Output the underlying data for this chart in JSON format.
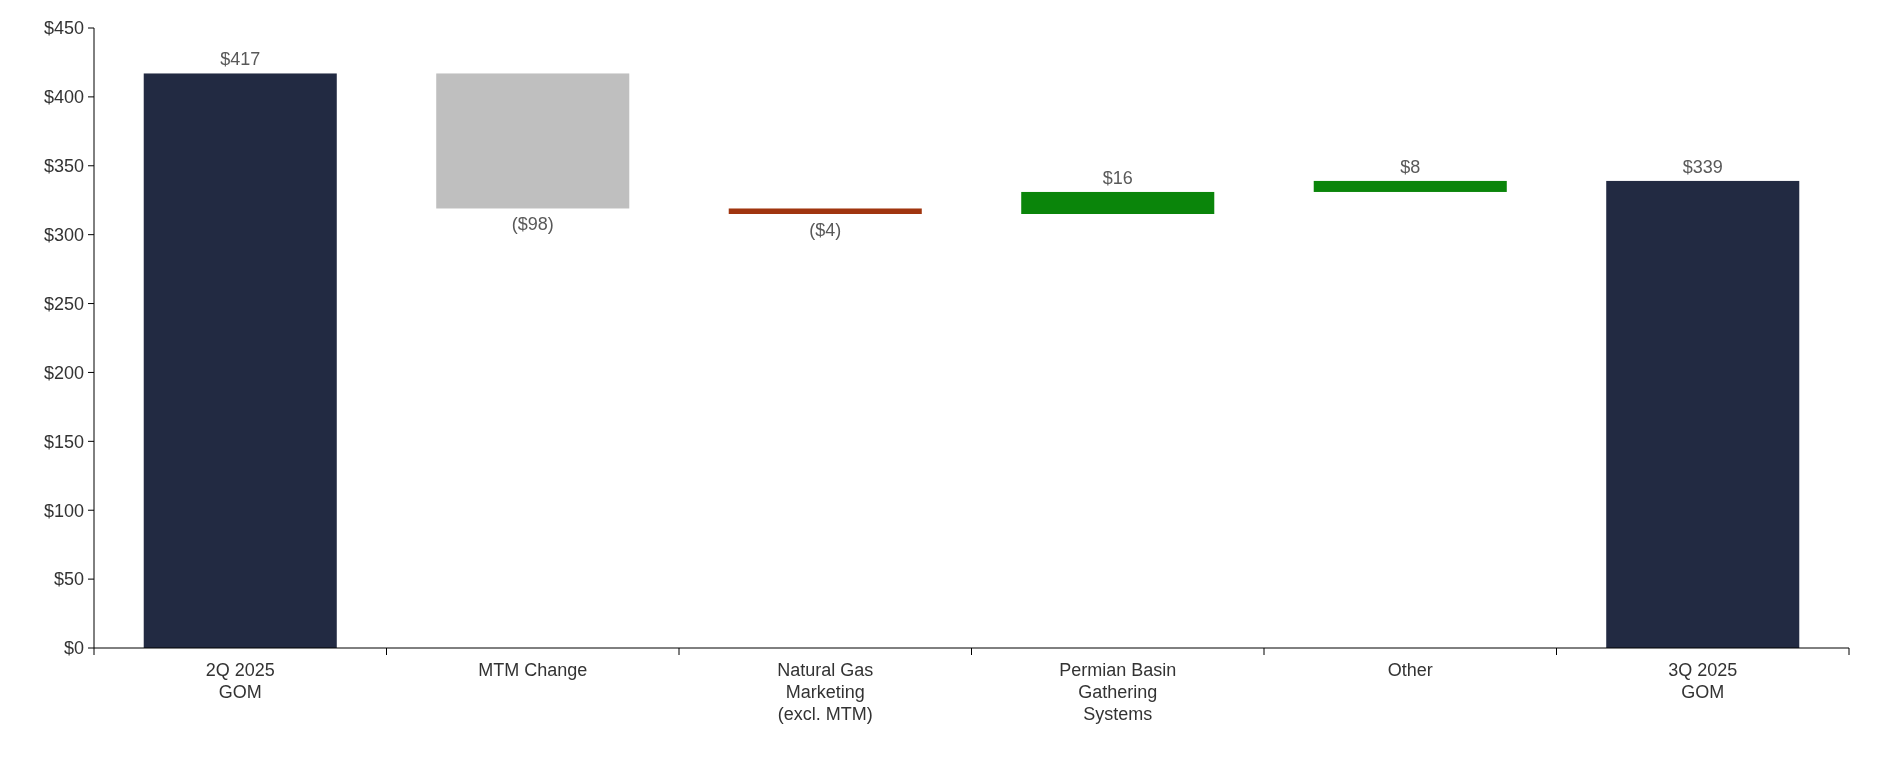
{
  "chart_data": {
    "type": "bar",
    "categories": [
      "2Q 2025\nGOM",
      "MTM Change",
      "Natural Gas\nMarketing\n(excl. MTM)",
      "Permian Basin\nGathering\nSystems",
      "Other",
      "3Q 2025\nGOM"
    ],
    "values": [
      417,
      -98,
      -4,
      16,
      8,
      339
    ],
    "base": [
      0,
      417,
      319,
      315,
      331,
      0
    ],
    "colors": [
      "#222a42",
      "#bfbfbf",
      "#a0350f",
      "#0a850a",
      "#0a850a",
      "#222a42"
    ],
    "value_labels": [
      "$417",
      "($98)",
      "($4)",
      "$16",
      "$8",
      "$339"
    ],
    "ylim": [
      0,
      450
    ],
    "yticks": [
      {
        "value": 0,
        "label": "$0"
      },
      {
        "value": 50,
        "label": "$50"
      },
      {
        "value": 100,
        "label": "$100"
      },
      {
        "value": 150,
        "label": "$150"
      },
      {
        "value": 200,
        "label": "$200"
      },
      {
        "value": 250,
        "label": "$250"
      },
      {
        "value": 300,
        "label": "$300"
      },
      {
        "value": 350,
        "label": "$350"
      },
      {
        "value": 400,
        "label": "$400"
      },
      {
        "value": 450,
        "label": "$450"
      }
    ],
    "grid": false
  }
}
